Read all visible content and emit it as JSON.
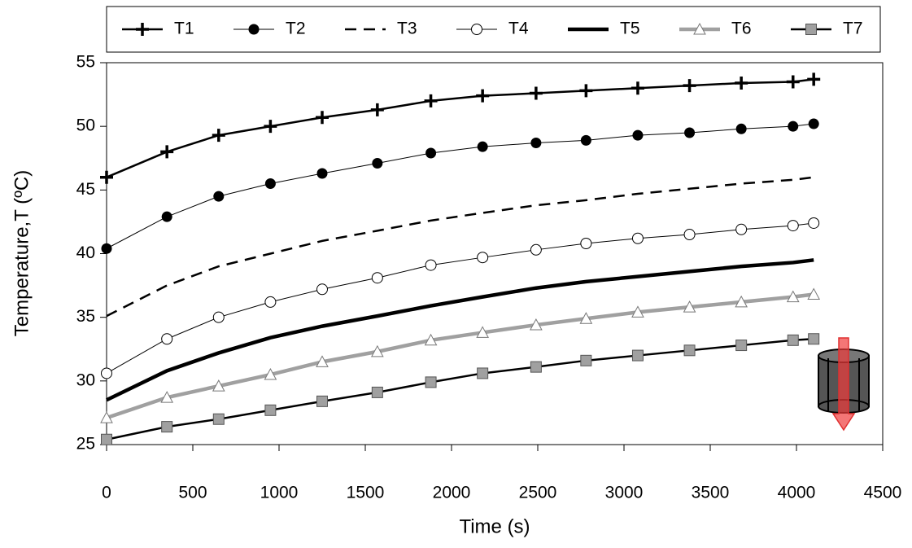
{
  "chart_data": {
    "type": "line",
    "x_label": "Time (s)",
    "y_label": "Temperature,T (ºC)",
    "x": [
      0,
      350,
      650,
      950,
      1250,
      1570,
      1880,
      2180,
      2490,
      2780,
      3080,
      3380,
      3680,
      3980,
      4100
    ],
    "xlim": [
      0,
      4500
    ],
    "xticks": [
      0,
      500,
      1000,
      1500,
      2000,
      2500,
      3000,
      3500,
      4000,
      4500
    ],
    "ylim": [
      25,
      55
    ],
    "yticks": [
      25,
      30,
      35,
      40,
      45,
      50,
      55
    ],
    "series": [
      {
        "name": "T1",
        "color": "#000000",
        "width": 2.5,
        "dash": false,
        "marker": "plus",
        "values": [
          46,
          48,
          49.3,
          50,
          50.7,
          51.3,
          52,
          52.4,
          52.6,
          52.8,
          53,
          53.2,
          53.4,
          53.5,
          53.7
        ]
      },
      {
        "name": "T2",
        "color": "#000000",
        "width": 1,
        "dash": false,
        "marker": "filled-circle",
        "values": [
          40.4,
          42.9,
          44.5,
          45.5,
          46.3,
          47.1,
          47.9,
          48.4,
          48.7,
          48.9,
          49.3,
          49.5,
          49.8,
          50,
          50.2
        ]
      },
      {
        "name": "T3",
        "color": "#000000",
        "width": 2.5,
        "dash": true,
        "marker": "none",
        "values": [
          35.1,
          37.5,
          39,
          40,
          41,
          41.8,
          42.6,
          43.2,
          43.8,
          44.2,
          44.7,
          45.1,
          45.5,
          45.8,
          46
        ]
      },
      {
        "name": "T4",
        "color": "#000000",
        "width": 1,
        "dash": false,
        "marker": "open-circle",
        "values": [
          30.6,
          33.3,
          35,
          36.2,
          37.2,
          38.1,
          39.1,
          39.7,
          40.3,
          40.8,
          41.2,
          41.5,
          41.9,
          42.2,
          42.4
        ]
      },
      {
        "name": "T5",
        "color": "#000000",
        "width": 4.5,
        "dash": false,
        "marker": "none",
        "values": [
          28.5,
          30.8,
          32.2,
          33.4,
          34.3,
          35.1,
          35.9,
          36.6,
          37.3,
          37.8,
          38.2,
          38.6,
          39,
          39.3,
          39.5
        ]
      },
      {
        "name": "T6",
        "color": "#a0a0a0",
        "width": 4.5,
        "dash": false,
        "marker": "triangle",
        "values": [
          27.1,
          28.7,
          29.6,
          30.5,
          31.5,
          32.3,
          33.2,
          33.8,
          34.4,
          34.9,
          35.4,
          35.8,
          36.2,
          36.6,
          36.8
        ]
      },
      {
        "name": "T7",
        "color": "#000000",
        "width": 2.5,
        "dash": false,
        "marker": "square",
        "values": [
          25.4,
          26.4,
          27,
          27.7,
          28.4,
          29.1,
          29.9,
          30.6,
          31.1,
          31.6,
          32,
          32.4,
          32.8,
          33.2,
          33.3
        ]
      }
    ]
  }
}
